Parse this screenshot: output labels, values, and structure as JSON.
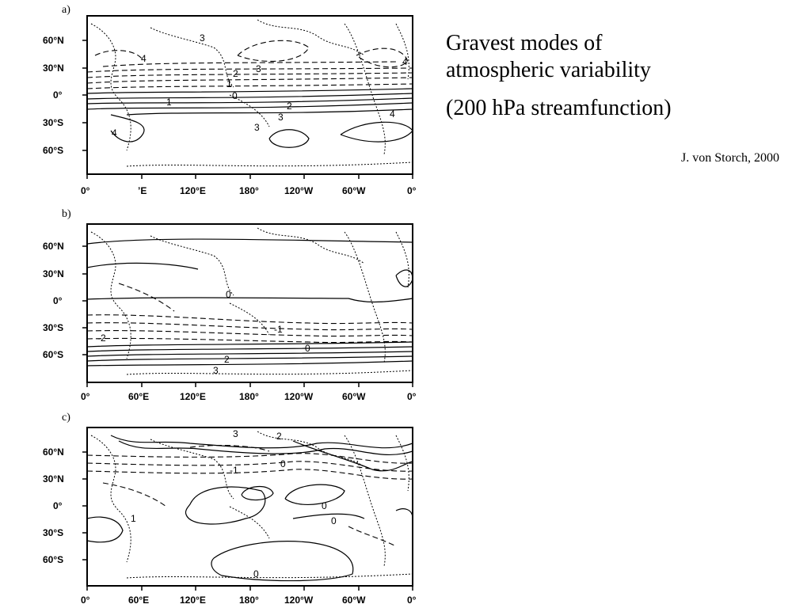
{
  "title": {
    "line1": "Gravest modes of",
    "line2": "atmospheric variability",
    "subtitle": "(200 hPa streamfunction)",
    "credit": "J. von Storch, 2000"
  },
  "panels": [
    {
      "label": "a)",
      "y_ticks": [
        "60°N",
        "30°N",
        "0°",
        "30°S",
        "60°S"
      ],
      "x_ticks": [
        "0°",
        "ʼE",
        "120°E",
        "180°",
        "120°W",
        "60°W",
        "0°"
      ],
      "contour_labels": [
        "3",
        "4",
        "2",
        "3",
        "1",
        "0",
        "1",
        "2",
        "3",
        "4",
        "3",
        "4",
        "4"
      ]
    },
    {
      "label": "b)",
      "y_ticks": [
        "60°N",
        "30°N",
        "0°",
        "30°S",
        "60°S"
      ],
      "x_ticks": [
        "0°",
        "60°E",
        "120°E",
        "180°",
        "120°W",
        "60°W",
        "0°"
      ],
      "contour_labels": [
        "0",
        "-1",
        "-2",
        "0",
        "2",
        "3"
      ]
    },
    {
      "label": "c)",
      "y_ticks": [
        "60°N",
        "30°N",
        "0°",
        "30°S",
        "60°S"
      ],
      "x_ticks": [
        "0°",
        "60°E",
        "120°E",
        "180°",
        "120°W",
        "60°W",
        "0°"
      ],
      "contour_labels": [
        "3",
        "2",
        "-1",
        "0",
        "0",
        "0",
        "1",
        "0"
      ]
    }
  ]
}
